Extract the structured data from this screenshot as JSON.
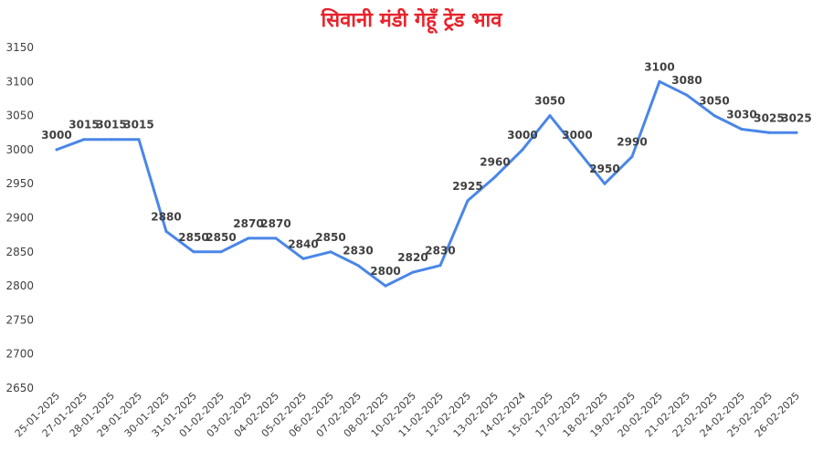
{
  "chart_data": {
    "type": "line",
    "title": "सिवानी मंडी गेहूँ ट्रेंड भाव",
    "xlabel": "",
    "ylabel": "",
    "ylim": [
      2650,
      3150
    ],
    "yticks": [
      2650,
      2700,
      2750,
      2800,
      2850,
      2900,
      2950,
      3000,
      3050,
      3100,
      3150
    ],
    "grid": false,
    "legend": "none",
    "line_color": "#4a86e8",
    "categories": [
      "25-01-2025",
      "27-01-2025",
      "28-01-2025",
      "29-01-2025",
      "30-01-2025",
      "31-01-2025",
      "01-02-2025",
      "03-02-2025",
      "04-02-2025",
      "05-02-2025",
      "06-02-2025",
      "07-02-2025",
      "08-02-2025",
      "10-02-2025",
      "11-02-2025",
      "12-02-2025",
      "13-02-2025",
      "14-02-2024",
      "15-02-2025",
      "17-02-2025",
      "18-02-2025",
      "19-02-2025",
      "20-02-2025",
      "21-02-2025",
      "22-02-2025",
      "24-02-2025",
      "25-02-2025",
      "26-02-2025"
    ],
    "series": [
      {
        "values": [
          3000,
          3015,
          3015,
          3015,
          2880,
          2850,
          2850,
          2870,
          2870,
          2840,
          2850,
          2830,
          2800,
          2820,
          2830,
          2925,
          2960,
          3000,
          3050,
          3000,
          2950,
          2990,
          3100,
          3080,
          3050,
          3030,
          3025,
          3025
        ]
      }
    ]
  }
}
